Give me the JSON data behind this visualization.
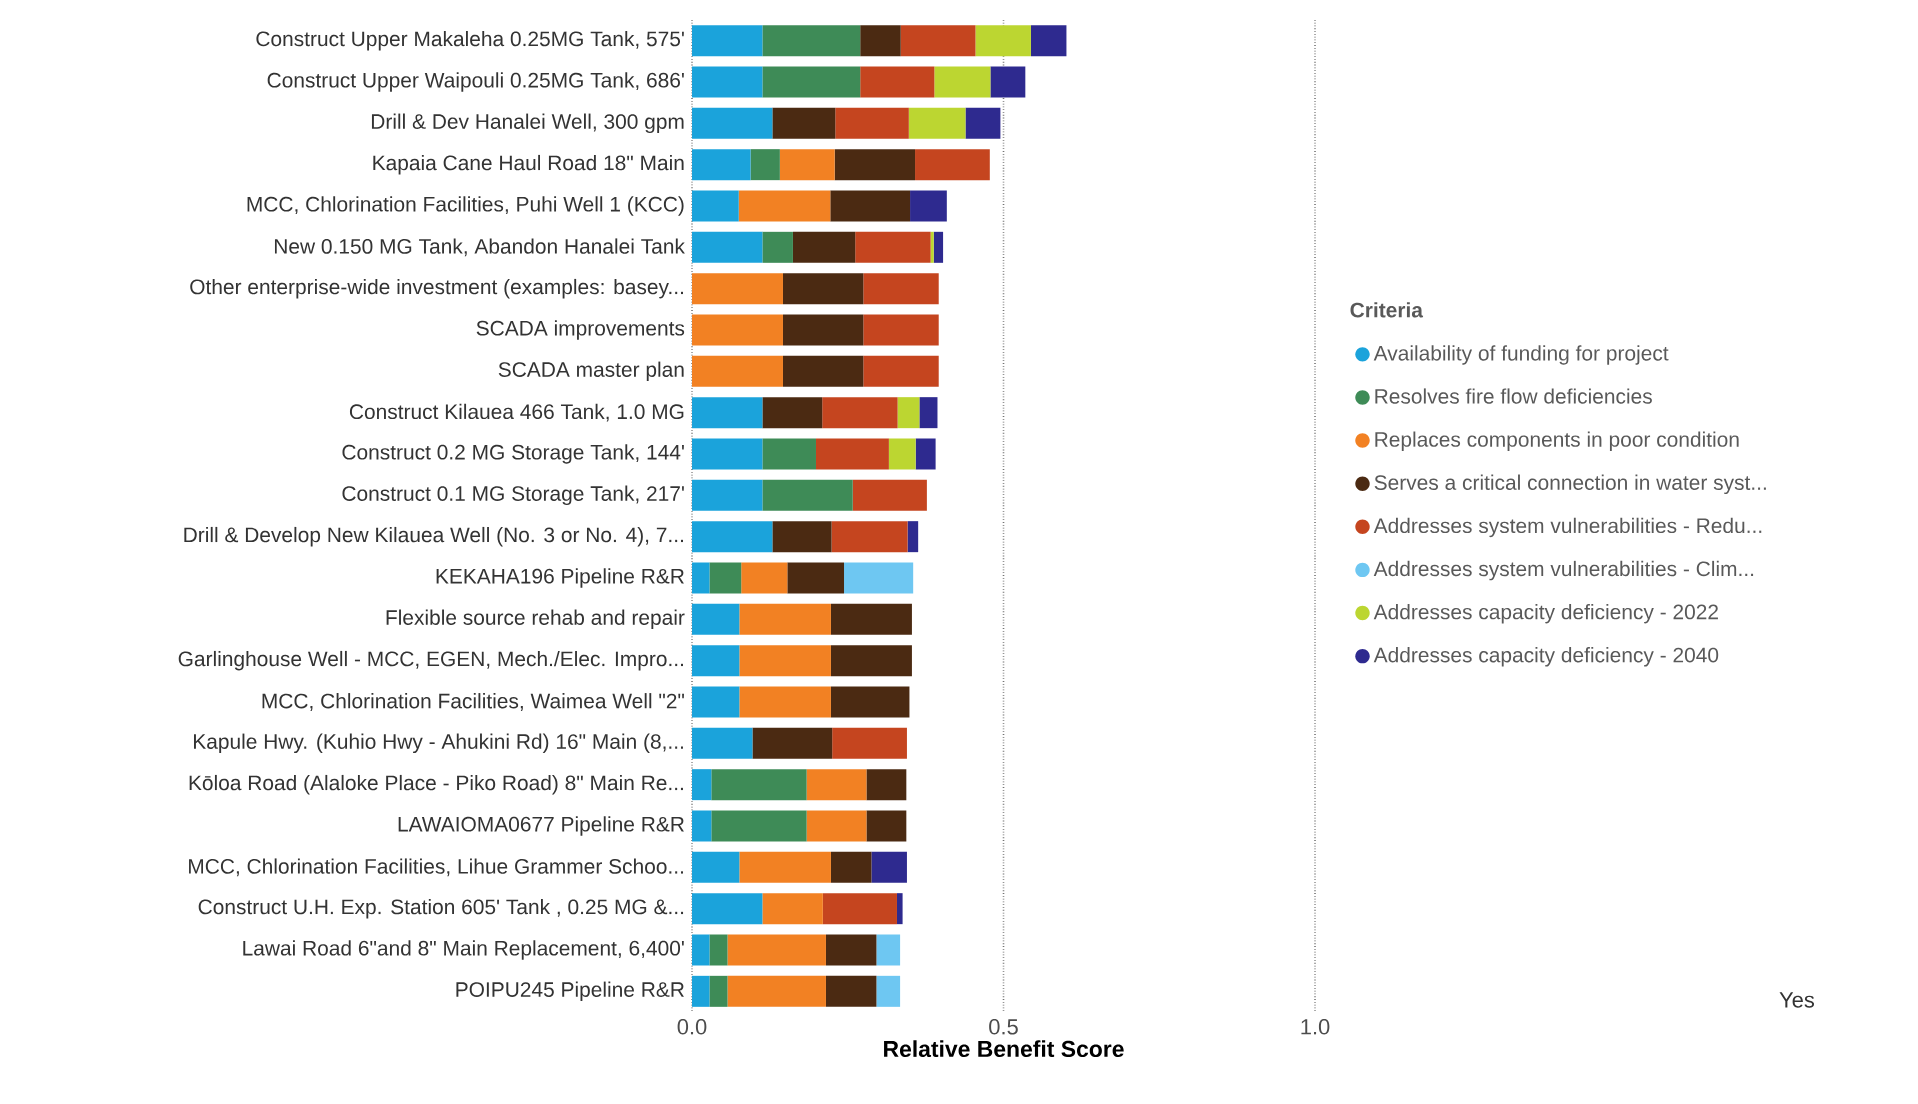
{
  "chart_data": {
    "type": "bar",
    "orientation": "horizontal",
    "stacked": true,
    "xlabel": "Relative Benefit Score",
    "legend_title": "Criteria",
    "legend": "right",
    "grid": "x",
    "categories": [
      "Construct Upper Makaleha 0.25MG Tank, 575'",
      "Construct Upper Waipouli 0.25MG Tank, 686'",
      "Drill & Dev Hanalei Well, 300 gpm",
      "Kapaia Cane Haul Road 18\" Main",
      "MCC, Chlorination Facilities, Puhi Well 1 (KCC)",
      "New 0.150 MG Tank, Abandon Hanalei Tank",
      "Other enterprise-wide investment (examples: basey...",
      "SCADA improvements",
      "SCADA master plan",
      "Construct Kilauea 466 Tank, 1.0 MG",
      "Construct 0.2 MG Storage Tank, 144'",
      "Construct 0.1 MG Storage Tank, 217'",
      "Drill & Develop New Kilauea Well (No. 3 or No. 4), 7...",
      "KEKAHA196 Pipeline R&R",
      "Flexible source rehab and repair",
      "Garlinghouse Well - MCC, EGEN, Mech./Elec. Impro...",
      "MCC, Chlorination Facilities, Waimea Well \"2\"",
      "Kapule Hwy. (Kuhio Hwy - Ahukini Rd) 16\" Main (8,...",
      "Kōloa Road (Alaloke Place - Piko Road) 8\" Main Re...",
      "LAWAIOMA0677 Pipeline R&R",
      "MCC, Chlorination Facilities, Lihue Grammer Schoo...",
      "Construct U.H. Exp. Station 605' Tank , 0.25 MG &...",
      "Lawai Road 6\"and 8\" Main Replacement, 6,400'",
      "POIPU245 Pipeline R&R"
    ],
    "xlim": [
      0,
      1.0
    ],
    "xticks": [
      {
        "value": 0,
        "label": "0.0"
      },
      {
        "value": 0.5,
        "label": "0.5"
      },
      {
        "value": 1.0,
        "label": "1.0"
      }
    ],
    "series": [
      {
        "name": "Availability of funding for project",
        "color": "#1ba3db",
        "values": [
          0.113,
          0.113,
          0.129,
          0.094,
          0.075,
          0.113,
          null,
          null,
          null,
          0.113,
          0.113,
          0.113,
          0.129,
          0.028,
          0.076,
          0.076,
          0.076,
          0.097,
          0.031,
          0.031,
          0.076,
          0.113,
          0.028,
          0.028
        ]
      },
      {
        "name": "Resolves fire flow deficiencies",
        "color": "#3e8b57",
        "values": [
          0.157,
          0.157,
          null,
          0.047,
          null,
          0.049,
          null,
          null,
          null,
          null,
          0.086,
          0.145,
          null,
          0.051,
          null,
          null,
          null,
          null,
          0.153,
          0.153,
          null,
          null,
          0.029,
          0.029
        ]
      },
      {
        "name": "Replaces components in poor condition",
        "color": "#f28123",
        "values": [
          null,
          null,
          null,
          0.088,
          0.147,
          null,
          0.146,
          0.146,
          0.146,
          null,
          null,
          null,
          null,
          0.074,
          0.147,
          0.147,
          0.147,
          null,
          0.096,
          0.096,
          0.147,
          0.097,
          0.158,
          0.158
        ]
      },
      {
        "name": "Serves a critical connection in water syst...",
        "color": "#4b2a12",
        "values": [
          0.065,
          null,
          0.101,
          0.129,
          0.128,
          0.1,
          0.129,
          0.129,
          0.129,
          0.096,
          null,
          null,
          0.095,
          0.091,
          0.13,
          0.13,
          0.126,
          0.128,
          0.064,
          0.064,
          0.065,
          null,
          0.081,
          0.081
        ]
      },
      {
        "name": "Addresses system vulnerabilities - Redu...",
        "color": "#c5451f",
        "values": [
          0.12,
          0.119,
          0.118,
          0.12,
          null,
          0.121,
          0.121,
          0.121,
          0.121,
          0.121,
          0.117,
          0.119,
          0.122,
          null,
          null,
          null,
          null,
          0.12,
          null,
          null,
          null,
          0.119,
          null,
          null
        ]
      },
      {
        "name": "Addresses system vulnerabilities - Clim...",
        "color": "#6ec7f2",
        "values": [
          null,
          null,
          null,
          null,
          null,
          null,
          null,
          null,
          null,
          null,
          null,
          null,
          null,
          0.111,
          null,
          null,
          null,
          null,
          null,
          null,
          null,
          null,
          0.038,
          0.038
        ]
      },
      {
        "name": "Addresses capacity deficiency - 2022",
        "color": "#bcd631",
        "values": [
          0.089,
          0.09,
          0.091,
          null,
          null,
          0.005,
          null,
          null,
          null,
          0.035,
          0.043,
          null,
          null,
          null,
          null,
          null,
          null,
          null,
          null,
          null,
          null,
          null,
          null,
          null
        ]
      },
      {
        "name": "Addresses capacity deficiency - 2040",
        "color": "#2e2a8f",
        "values": [
          0.057,
          0.056,
          0.056,
          null,
          0.059,
          0.015,
          null,
          null,
          null,
          0.029,
          0.032,
          null,
          0.017,
          null,
          null,
          null,
          null,
          null,
          null,
          null,
          0.057,
          0.009,
          null,
          null
        ]
      }
    ],
    "annotations": [
      "Yes"
    ]
  }
}
